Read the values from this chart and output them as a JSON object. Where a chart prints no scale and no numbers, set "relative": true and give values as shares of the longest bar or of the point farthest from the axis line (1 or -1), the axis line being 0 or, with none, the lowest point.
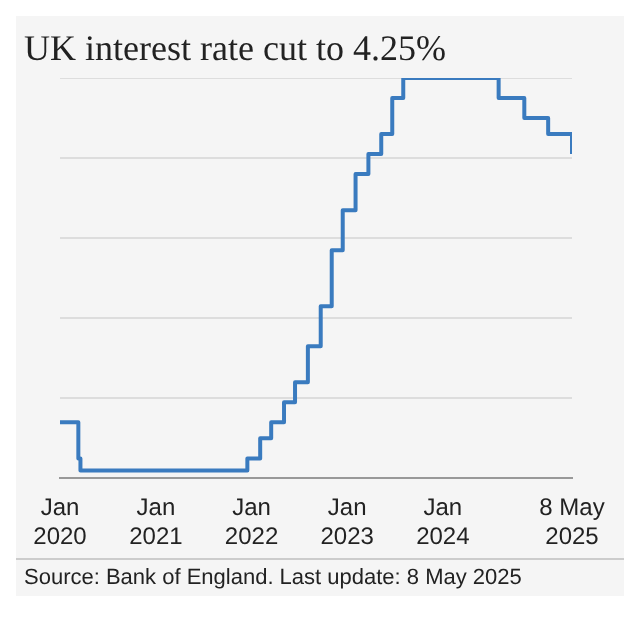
{
  "chart_data": {
    "type": "step",
    "title": "UK interest rate cut to 4.25%",
    "annotations": [
      "Source: Bank of England. Last update: 8 May 2025"
    ],
    "relative": true,
    "grid": "y",
    "legend": false,
    "marker": "none",
    "line_style": "solid",
    "x": [
      "2020-01-01",
      "2020-03-11",
      "2020-03-19",
      "2021-12-16",
      "2022-02-03",
      "2022-03-17",
      "2022-05-05",
      "2022-06-16",
      "2022-08-04",
      "2022-09-22",
      "2022-11-03",
      "2022-12-15",
      "2023-02-02",
      "2023-03-23",
      "2023-05-11",
      "2023-06-22",
      "2023-08-03",
      "2024-08-01",
      "2024-11-07",
      "2025-02-06",
      "2025-05-08"
    ],
    "series": [
      {
        "color": "#3a7bbf",
        "values": [
          0.14,
          0.05,
          0.02,
          0.05,
          0.1,
          0.14,
          0.19,
          0.24,
          0.33,
          0.43,
          0.57,
          0.67,
          0.76,
          0.81,
          0.86,
          0.95,
          1,
          0.95,
          0.9,
          0.86,
          0.81
        ]
      }
    ],
    "xlim": [
      "2020-01-01",
      "2025-05-08"
    ],
    "xticks": [
      {
        "value": "2020-01-01",
        "label": "Jan 2020"
      },
      {
        "value": "2021-01-01",
        "label": "Jan 2021"
      },
      {
        "value": "2022-01-01",
        "label": "Jan 2022"
      },
      {
        "value": "2023-01-01",
        "label": "Jan 2023"
      },
      {
        "value": "2024-01-01",
        "label": "Jan 2024"
      },
      {
        "value": "2025-05-08",
        "label": "8 May 2025"
      }
    ]
  }
}
